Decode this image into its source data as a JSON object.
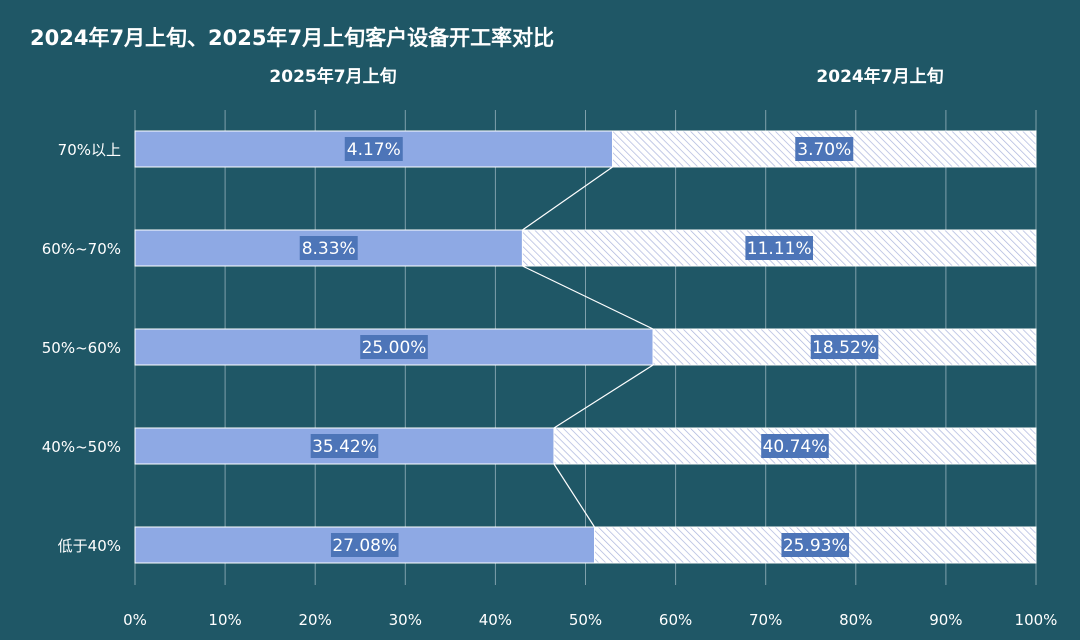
{
  "title": "2024年7月上旬、2025年7月上旬客户设备开工率对比",
  "colors": {
    "background": "#1f5766",
    "bar_2025": "#8ea9e4",
    "bar_2024_fill": "#ffffff",
    "bar_2024_hatch": "#aab4dc",
    "label_box": "#4d75b8",
    "gridline": "#7fa0ab"
  },
  "chart_data": {
    "type": "bar",
    "orientation": "horizontal",
    "stacked_percent": true,
    "title": "2024年7月上旬、2025年7月上旬客户设备开工率对比",
    "categories": [
      "70%以上",
      "60%~70%",
      "50%~60%",
      "40%~50%",
      "低于40%"
    ],
    "series": [
      {
        "name": "2025年7月上旬",
        "values": [
          4.17,
          8.33,
          25.0,
          35.42,
          27.08
        ],
        "labels": [
          "4.17%",
          "8.33%",
          "25.00%",
          "35.42%",
          "27.08%"
        ]
      },
      {
        "name": "2024年7月上旬",
        "values": [
          3.7,
          11.11,
          18.52,
          40.74,
          25.93
        ],
        "labels": [
          "3.70%",
          "11.11%",
          "18.52%",
          "40.74%",
          "25.93%"
        ]
      }
    ],
    "boundary_percent": [
      53.0,
      43.0,
      57.5,
      46.5,
      51.0
    ],
    "xlim": [
      0,
      100
    ],
    "xticks": [
      "0%",
      "10%",
      "20%",
      "30%",
      "40%",
      "50%",
      "60%",
      "70%",
      "80%",
      "90%",
      "100%"
    ],
    "grid": true,
    "legend": "top, above each segment"
  }
}
